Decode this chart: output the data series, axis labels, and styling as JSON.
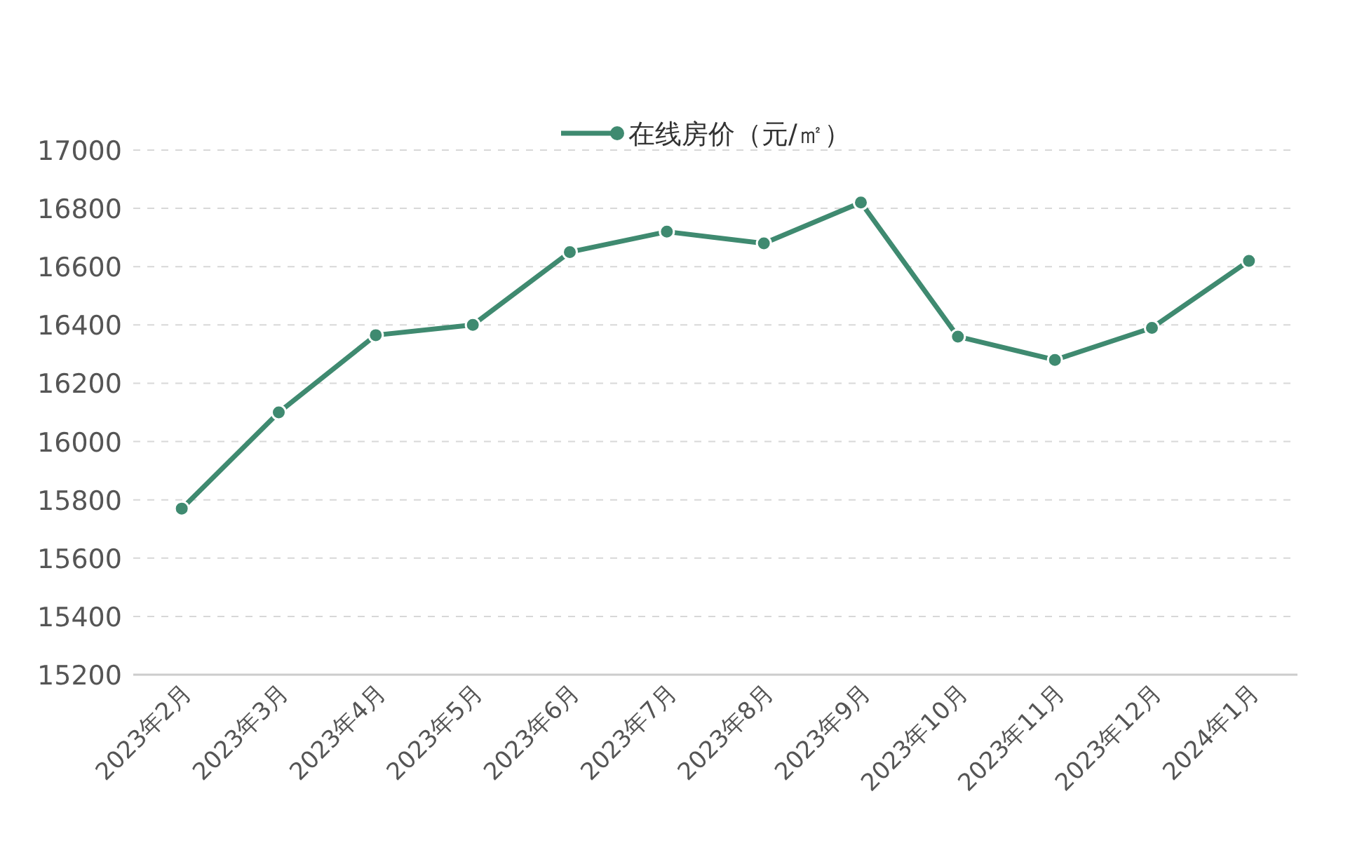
{
  "chart_data": {
    "type": "line",
    "categories": [
      "2023年2月",
      "2023年3月",
      "2023年4月",
      "2023年5月",
      "2023年6月",
      "2023年7月",
      "2023年8月",
      "2023年9月",
      "2023年10月",
      "2023年11月",
      "2023年12月",
      "2024年1月"
    ],
    "series": [
      {
        "name": "在线房价（元/㎡）",
        "color": "#3f8a70",
        "values": [
          15770,
          16100,
          16365,
          16400,
          16650,
          16720,
          16680,
          16820,
          16360,
          16280,
          16390,
          16620
        ]
      }
    ],
    "ylim": [
      15200,
      17000
    ],
    "yticks": [
      15200,
      15400,
      15600,
      15800,
      16000,
      16200,
      16400,
      16600,
      16800,
      17000
    ],
    "grid": "y",
    "legend": "top",
    "marker": "circle",
    "line_style": "solid"
  }
}
